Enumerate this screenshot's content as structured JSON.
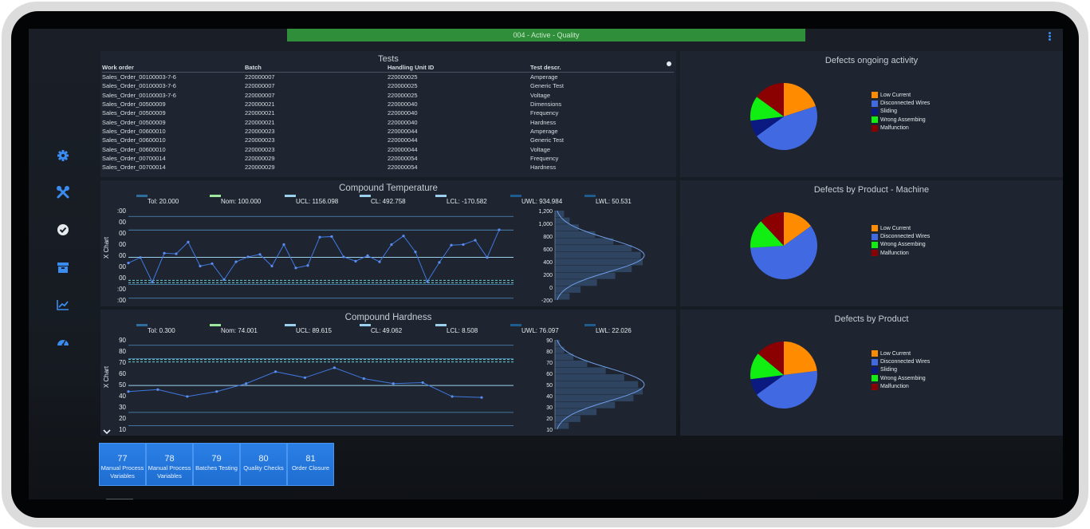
{
  "header": {
    "status_label": "004 - Active - Quality"
  },
  "sidebar": {
    "icons": [
      "gear-icon",
      "tools-icon",
      "check-circle-icon",
      "box-icon",
      "trend-chart-icon",
      "speedometer-icon"
    ]
  },
  "tests": {
    "title": "Tests",
    "columns": [
      "Work order",
      "Batch",
      "Handling Unit ID",
      "Test descr."
    ],
    "rows": [
      [
        "Sales_Order_00100003-7-6",
        "220000007",
        "220000025",
        "Amperage"
      ],
      [
        "Sales_Order_00100003-7-6",
        "220000007",
        "220000025",
        "Generic Test"
      ],
      [
        "Sales_Order_00100003-7-6",
        "220000007",
        "220000025",
        "Voltage"
      ],
      [
        "Sales_Order_00500009",
        "220000021",
        "220000040",
        "Dimensions"
      ],
      [
        "Sales_Order_00500009",
        "220000021",
        "220000040",
        "Frequency"
      ],
      [
        "Sales_Order_00500009",
        "220000021",
        "220000040",
        "Hardness"
      ],
      [
        "Sales_Order_00600010",
        "220000023",
        "220000044",
        "Amperage"
      ],
      [
        "Sales_Order_00600010",
        "220000023",
        "220000044",
        "Generic Test"
      ],
      [
        "Sales_Order_00600010",
        "220000023",
        "220000044",
        "Voltage"
      ],
      [
        "Sales_Order_00700014",
        "220000029",
        "220000054",
        "Frequency"
      ],
      [
        "Sales_Order_00700014",
        "220000029",
        "220000054",
        "Hardness"
      ]
    ]
  },
  "legend_colors": {
    "Low Current": "#ff8c00",
    "Disconnected Wires": "#4169e1",
    "Sliding": "#0a1a80",
    "Wrong Assembing": "#11ee11",
    "Malfunction": "#8b0000"
  },
  "pies": [
    {
      "title": "Defects ongoing activity",
      "legend": [
        "Low Current",
        "Disconnected Wires",
        "Sliding",
        "Wrong Assembing",
        "Malfunction"
      ],
      "values": [
        20,
        45,
        8,
        12,
        15
      ]
    },
    {
      "title": "Defects by Product - Machine",
      "legend": [
        "Low Current",
        "Disconnected Wires",
        "Wrong Assembing",
        "Malfunction"
      ],
      "values": [
        15,
        59,
        14,
        12
      ]
    },
    {
      "title": "Defects by Product",
      "legend": [
        "Low Current",
        "Disconnected Wires",
        "Sliding",
        "Wrong Assembing",
        "Malfunction"
      ],
      "values": [
        23,
        42,
        8,
        13,
        14
      ]
    }
  ],
  "spc": [
    {
      "title": "Compound Temperature",
      "y_axis_label": "X Chart",
      "legend": [
        {
          "label": "Tol: 20.000",
          "color": "#2e6e9e"
        },
        {
          "label": "Nom: 100.000",
          "color": "#9ee89e"
        },
        {
          "label": "UCL: 1156.098",
          "color": "#9ad0ee"
        },
        {
          "label": "CL: 492.758",
          "color": "#9ad0ee"
        },
        {
          "label": "LCL: -170.582",
          "color": "#9ad0ee"
        },
        {
          "label": "UWL: 934.984",
          "color": "#1f5c8e"
        },
        {
          "label": "LWL: 50.531",
          "color": "#1f5c8e"
        }
      ],
      "ticks_main": [
        ":00",
        "00",
        "00",
        "00",
        "00",
        "00",
        "00",
        ":00",
        ":00"
      ],
      "ticks_hist": [
        "1,200",
        "1,000",
        "800",
        "600",
        "400",
        "200",
        "0",
        "-200"
      ],
      "ylim": [
        -200,
        1250
      ],
      "hlines": [
        1156,
        935,
        493,
        51,
        -171
      ],
      "nominal": 100,
      "values": [
        400,
        490,
        90,
        560,
        550,
        740,
        350,
        390,
        130,
        420,
        500,
        540,
        350,
        700,
        320,
        360,
        820,
        830,
        500,
        430,
        520,
        420,
        700,
        840,
        580,
        100,
        410,
        690,
        700,
        770,
        490,
        940
      ],
      "hist_bins": [
        50,
        80,
        130,
        220,
        320,
        420,
        470,
        480,
        420,
        330,
        230,
        140,
        80
      ]
    },
    {
      "title": "Compound Hardness",
      "y_axis_label": "X Chart",
      "legend": [
        {
          "label": "Tol: 0.300",
          "color": "#2e6e9e"
        },
        {
          "label": "Nom: 74.001",
          "color": "#9ee89e"
        },
        {
          "label": "UCL: 89.615",
          "color": "#9ad0ee"
        },
        {
          "label": "CL: 49.062",
          "color": "#9ad0ee"
        },
        {
          "label": "LCL: 8.508",
          "color": "#9ad0ee"
        },
        {
          "label": "UWL: 76.097",
          "color": "#1f5c8e"
        },
        {
          "label": "LWL: 22.026",
          "color": "#1f5c8e"
        }
      ],
      "ticks_main": [
        "90",
        "80",
        "70",
        "60",
        "50",
        "40",
        "30",
        "20",
        "10"
      ],
      "ticks_hist": [
        "90",
        "80",
        "70",
        "60",
        "50",
        "40",
        "30",
        "20",
        "10"
      ],
      "ylim": [
        5,
        95
      ],
      "hlines": [
        89.6,
        76.1,
        49.1,
        22.0,
        8.5
      ],
      "nominal": 74,
      "values": [
        43,
        45,
        38,
        43,
        51,
        63,
        57,
        67,
        56,
        51,
        52,
        38,
        37
      ],
      "hist_bins": [
        20,
        40,
        80,
        140,
        220,
        300,
        360,
        380,
        340,
        260,
        180,
        110,
        60
      ]
    }
  ],
  "tiles": [
    {
      "num": "77",
      "label": "Manual Process Variables"
    },
    {
      "num": "78",
      "label": "Manual Process Variables"
    },
    {
      "num": "79",
      "label": "Batches Testing"
    },
    {
      "num": "80",
      "label": "Quality Checks"
    },
    {
      "num": "81",
      "label": "Order Closure"
    }
  ]
}
